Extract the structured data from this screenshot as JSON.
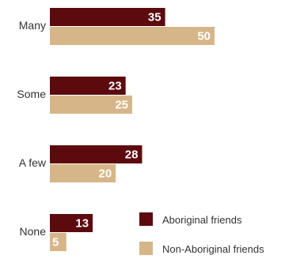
{
  "chart_data": {
    "type": "bar",
    "orientation": "horizontal",
    "categories": [
      "Many",
      "Some",
      "A few",
      "None"
    ],
    "series": [
      {
        "name": "Aboriginal friends",
        "values": [
          35,
          23,
          28,
          13
        ],
        "color": "#5c0a0e"
      },
      {
        "name": "Non-Aboriginal friends",
        "values": [
          50,
          25,
          20,
          5
        ],
        "color": "#d6b688"
      }
    ],
    "xlim": [
      0,
      50
    ],
    "grid": false,
    "data_labels": true,
    "legend_position": "bottom-right"
  }
}
